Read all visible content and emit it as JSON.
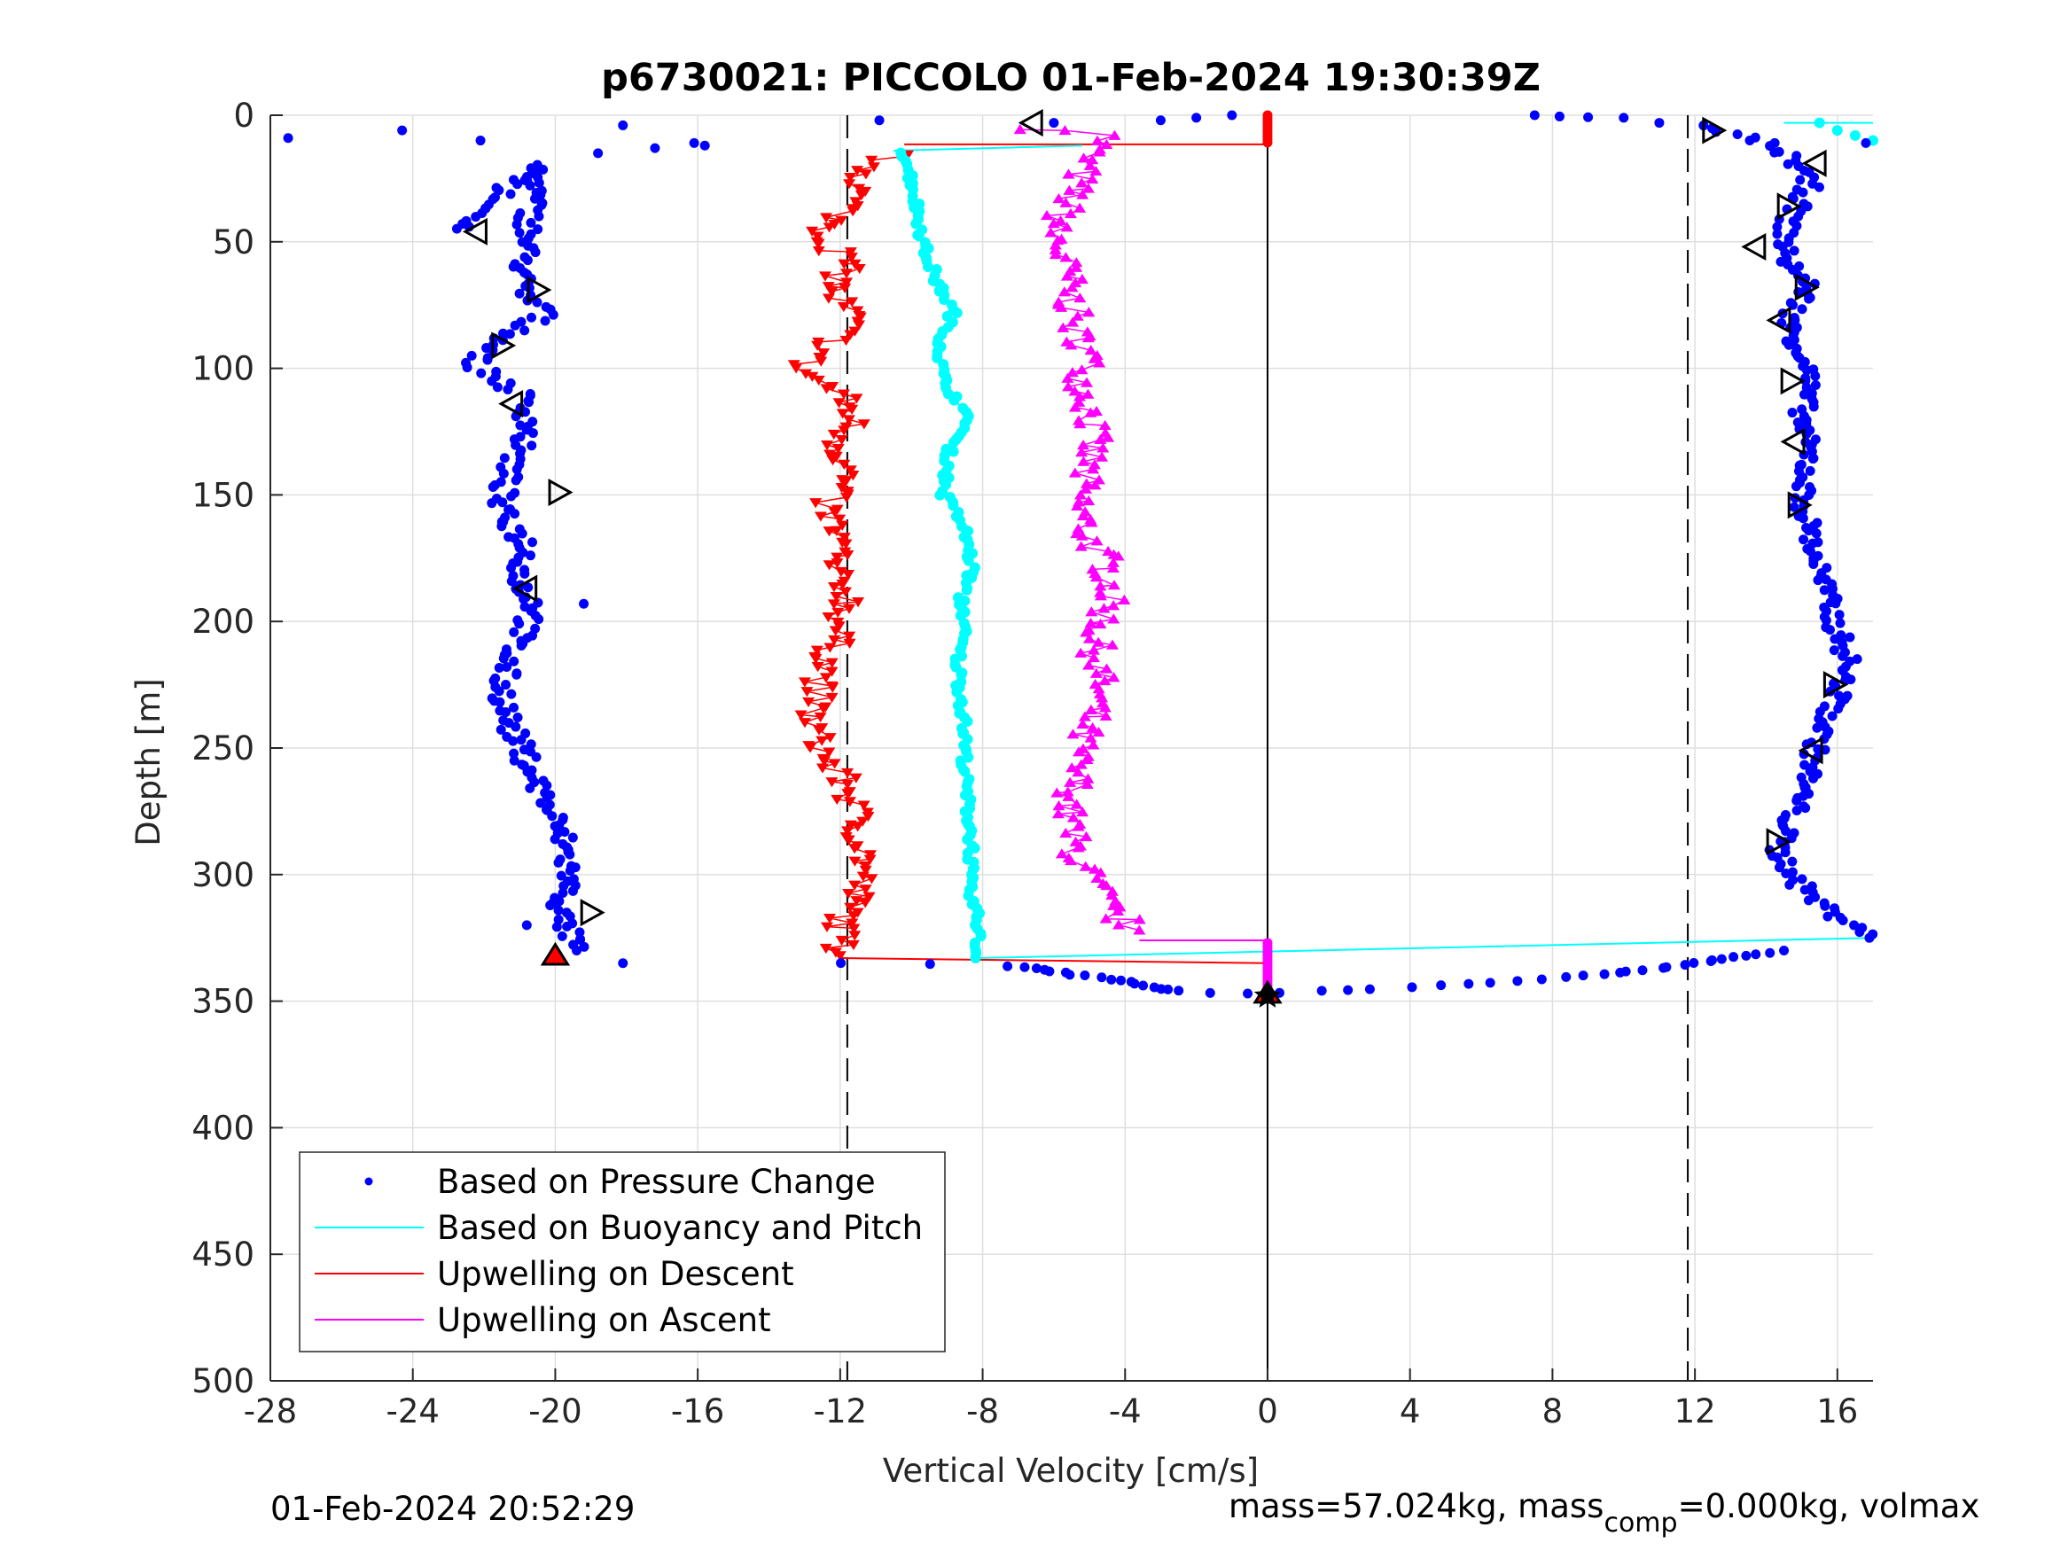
{
  "chart_data": {
    "type": "scatter",
    "title": "p6730021: PICCOLO 01-Feb-2024 19:30:39Z",
    "xlabel": "Vertical Velocity [cm/s]",
    "ylabel": "Depth [m]",
    "xlim": [
      -28,
      17
    ],
    "ylim": [
      0,
      500
    ],
    "y_reversed": true,
    "grid": true,
    "xticks": [
      -28,
      -24,
      -20,
      -16,
      -12,
      -8,
      -4,
      0,
      4,
      8,
      12,
      16
    ],
    "yticks": [
      0,
      50,
      100,
      150,
      200,
      250,
      300,
      350,
      400,
      450,
      500
    ],
    "reference_lines": {
      "solid_zero": 0,
      "dashed": [
        -11.8,
        11.8
      ]
    },
    "legend_position": "bottom-left",
    "legend": [
      {
        "label": "Based on Pressure Change",
        "color": "#0000ff",
        "style": "dot"
      },
      {
        "label": "Based on Buoyancy and Pitch",
        "color": "#00ffff",
        "style": "line"
      },
      {
        "label": "Upwelling on Descent",
        "color": "#ff0000",
        "style": "line"
      },
      {
        "label": "Upwelling on Ascent",
        "color": "#ff00ff",
        "style": "line"
      }
    ],
    "series": [
      {
        "name": "Based on Pressure Change",
        "color": "#0000ff",
        "marker": "dot",
        "descent_profile": [
          [
            -22.5,
            45
          ],
          [
            -21.5,
            30
          ],
          [
            -20.5,
            20
          ],
          [
            -21,
            70
          ],
          [
            -20.2,
            77
          ],
          [
            -21.8,
            92
          ],
          [
            -22.3,
            98
          ],
          [
            -21,
            110
          ],
          [
            -20.7,
            122
          ],
          [
            -21.3,
            140
          ],
          [
            -21.6,
            155
          ],
          [
            -20.8,
            170
          ],
          [
            -21,
            185
          ],
          [
            -20.5,
            195
          ],
          [
            -21.2,
            210
          ],
          [
            -21.5,
            225
          ],
          [
            -21.3,
            240
          ],
          [
            -20.8,
            255
          ],
          [
            -20.3,
            270
          ],
          [
            -19.8,
            285
          ],
          [
            -19.6,
            300
          ],
          [
            -19.9,
            315
          ],
          [
            -19.4,
            330
          ]
        ],
        "descent_scatter": [
          [
            -27.5,
            9
          ],
          [
            -24.3,
            6
          ],
          [
            -22.1,
            10
          ],
          [
            -18.1,
            4
          ],
          [
            -17.2,
            13
          ],
          [
            -16.1,
            11
          ],
          [
            -15.8,
            12
          ],
          [
            -18.8,
            15
          ],
          [
            -19.2,
            193
          ],
          [
            -18.1,
            335
          ],
          [
            -20.8,
            320
          ]
        ],
        "ascent_profile": [
          [
            12,
            4
          ],
          [
            13.8,
            10
          ],
          [
            14.8,
            18
          ],
          [
            15.2,
            28
          ],
          [
            14.6,
            42
          ],
          [
            14.5,
            55
          ],
          [
            15.2,
            68
          ],
          [
            14.6,
            82
          ],
          [
            15.2,
            100
          ],
          [
            15,
            120
          ],
          [
            15.2,
            135
          ],
          [
            15,
            150
          ],
          [
            15.4,
            175
          ],
          [
            15.9,
            200
          ],
          [
            16.3,
            215
          ],
          [
            16,
            230
          ],
          [
            15.5,
            245
          ],
          [
            15.2,
            260
          ],
          [
            14.8,
            275
          ],
          [
            14.3,
            290
          ],
          [
            15,
            305
          ],
          [
            15.8,
            315
          ],
          [
            16.6,
            320
          ],
          [
            16.9,
            325
          ]
        ],
        "ascent_scatter": [
          [
            7.5,
            0
          ],
          [
            8.2,
            0.5
          ],
          [
            9,
            0.8
          ],
          [
            10,
            1
          ],
          [
            11,
            3
          ],
          [
            16.8,
            11
          ]
        ],
        "bottom_turn": [
          [
            -12,
            335
          ],
          [
            -7.2,
            336
          ],
          [
            -6.5,
            337
          ],
          [
            -5.2,
            340
          ],
          [
            -4,
            342
          ],
          [
            -3,
            345
          ],
          [
            -2.5,
            346
          ],
          [
            -0.7,
            347
          ],
          [
            1.5,
            346
          ],
          [
            3,
            345
          ],
          [
            5,
            344
          ],
          [
            7,
            342
          ],
          [
            9,
            340
          ],
          [
            11,
            337
          ],
          [
            12,
            335
          ],
          [
            13.5,
            332
          ],
          [
            14.5,
            330
          ]
        ],
        "surface_scatter": [
          [
            -10.9,
            2
          ],
          [
            -6,
            3
          ],
          [
            -3,
            2
          ],
          [
            -2,
            1
          ],
          [
            -1,
            0
          ]
        ]
      },
      {
        "name": "Based on Buoyancy and Pitch",
        "color": "#00ffff",
        "marker": "dot-line",
        "profile": [
          [
            -10.2,
            15
          ],
          [
            -10,
            25
          ],
          [
            -9.8,
            40
          ],
          [
            -9.6,
            55
          ],
          [
            -9.2,
            68
          ],
          [
            -8.8,
            78
          ],
          [
            -9.1,
            85
          ],
          [
            -9.2,
            95
          ],
          [
            -9.1,
            105
          ],
          [
            -8.6,
            115
          ],
          [
            -8.4,
            122
          ],
          [
            -8.9,
            130
          ],
          [
            -9,
            140
          ],
          [
            -9.1,
            150
          ],
          [
            -8.6,
            160
          ],
          [
            -8.4,
            170
          ],
          [
            -8.3,
            180
          ],
          [
            -8.6,
            190
          ],
          [
            -8.5,
            200
          ],
          [
            -8.7,
            215
          ],
          [
            -8.6,
            230
          ],
          [
            -8.5,
            245
          ],
          [
            -8.5,
            260
          ],
          [
            -8.4,
            275
          ],
          [
            -8.3,
            290
          ],
          [
            -8.4,
            305
          ],
          [
            -8.1,
            320
          ],
          [
            -8.2,
            333
          ]
        ],
        "ascent_surface": [
          [
            15.5,
            3
          ],
          [
            16,
            6
          ],
          [
            16.5,
            8
          ],
          [
            17,
            10
          ]
        ]
      },
      {
        "name": "Upwelling on Descent",
        "color": "#ff0000",
        "marker": "triangle-down",
        "profile": [
          [
            -10.5,
            15
          ],
          [
            -11.2,
            22
          ],
          [
            -11.5,
            30
          ],
          [
            -12,
            40
          ],
          [
            -12.5,
            48
          ],
          [
            -11.8,
            58
          ],
          [
            -12.2,
            70
          ],
          [
            -11.6,
            80
          ],
          [
            -12.2,
            90
          ],
          [
            -13.2,
            100
          ],
          [
            -12,
            110
          ],
          [
            -11.6,
            120
          ],
          [
            -12,
            130
          ],
          [
            -11.8,
            140
          ],
          [
            -12.4,
            155
          ],
          [
            -12,
            170
          ],
          [
            -12.3,
            180
          ],
          [
            -11.7,
            190
          ],
          [
            -12,
            200
          ],
          [
            -12.2,
            210
          ],
          [
            -12.6,
            225
          ],
          [
            -12.8,
            240
          ],
          [
            -12.4,
            255
          ],
          [
            -11.8,
            265
          ],
          [
            -11.5,
            280
          ],
          [
            -11.3,
            295
          ],
          [
            -11.6,
            310
          ],
          [
            -12,
            322
          ],
          [
            -12,
            332
          ]
        ]
      },
      {
        "name": "Upwelling on Ascent",
        "color": "#ff00ff",
        "marker": "triangle-up",
        "profile": [
          [
            -6.5,
            5
          ],
          [
            -4.5,
            8
          ],
          [
            -5,
            15
          ],
          [
            -5.3,
            25
          ],
          [
            -5.6,
            35
          ],
          [
            -6,
            45
          ],
          [
            -5.8,
            55
          ],
          [
            -5.6,
            65
          ],
          [
            -5.5,
            75
          ],
          [
            -5.4,
            85
          ],
          [
            -5,
            95
          ],
          [
            -5.2,
            105
          ],
          [
            -5,
            115
          ],
          [
            -4.9,
            125
          ],
          [
            -5,
            135
          ],
          [
            -5.2,
            145
          ],
          [
            -5.3,
            155
          ],
          [
            -5.1,
            165
          ],
          [
            -4.6,
            175
          ],
          [
            -4.4,
            185
          ],
          [
            -4.5,
            195
          ],
          [
            -4.8,
            205
          ],
          [
            -4.8,
            215
          ],
          [
            -4.7,
            225
          ],
          [
            -4.9,
            235
          ],
          [
            -5.2,
            245
          ],
          [
            -5.4,
            255
          ],
          [
            -5.4,
            265
          ],
          [
            -5.6,
            275
          ],
          [
            -5.5,
            285
          ],
          [
            -5.3,
            295
          ],
          [
            -4.8,
            305
          ],
          [
            -4.4,
            315
          ],
          [
            -3.6,
            322
          ]
        ]
      }
    ],
    "markers_open_triangles": [
      [
        -22.2,
        46,
        "left"
      ],
      [
        -20.5,
        69,
        "right"
      ],
      [
        -21.5,
        91,
        "right"
      ],
      [
        -21.2,
        114,
        "left"
      ],
      [
        -19.9,
        149,
        "right"
      ],
      [
        -20.8,
        187,
        "left"
      ],
      [
        -19,
        315,
        "right"
      ],
      [
        -6.6,
        3,
        "left"
      ],
      [
        12.5,
        6,
        "right"
      ],
      [
        15.4,
        19,
        "left"
      ],
      [
        14.6,
        36,
        "right"
      ],
      [
        13.7,
        52,
        "left"
      ],
      [
        15.1,
        68,
        "right"
      ],
      [
        14.4,
        81,
        "left"
      ],
      [
        14.7,
        105,
        "right"
      ],
      [
        14.8,
        129,
        "left"
      ],
      [
        14.9,
        154,
        "right"
      ],
      [
        15.9,
        225,
        "right"
      ],
      [
        15.3,
        251,
        "left"
      ],
      [
        14.3,
        287,
        "right"
      ]
    ],
    "markers_filled": [
      [
        -20,
        332,
        "red-up"
      ],
      [
        0,
        347,
        "red-up"
      ],
      [
        0,
        348,
        "black-star"
      ]
    ],
    "connectors": [
      {
        "color": "#ff0000",
        "points": [
          [
            -10.2,
            11.5
          ],
          [
            0,
            11.5
          ]
        ]
      },
      {
        "color": "#00ffff",
        "points": [
          [
            -10.5,
            14
          ],
          [
            -5.2,
            12
          ]
        ]
      },
      {
        "color": "#ff0000",
        "points": [
          [
            -12,
            333
          ],
          [
            0,
            335
          ]
        ]
      },
      {
        "color": "#00ffff",
        "points": [
          [
            -8.2,
            333
          ],
          [
            17,
            325
          ]
        ]
      },
      {
        "color": "#ff00ff",
        "points": [
          [
            -3.6,
            326
          ],
          [
            0,
            326
          ]
        ]
      },
      {
        "color": "#00ffff",
        "points": [
          [
            14.5,
            3
          ],
          [
            17,
            3
          ]
        ]
      }
    ]
  },
  "footer": {
    "timestamp": "01-Feb-2024 20:52:29",
    "mass_prefix": "mass=57.024kg, mass",
    "mass_sub": "comp",
    "mass_suffix": "=0.000kg, volmax"
  }
}
